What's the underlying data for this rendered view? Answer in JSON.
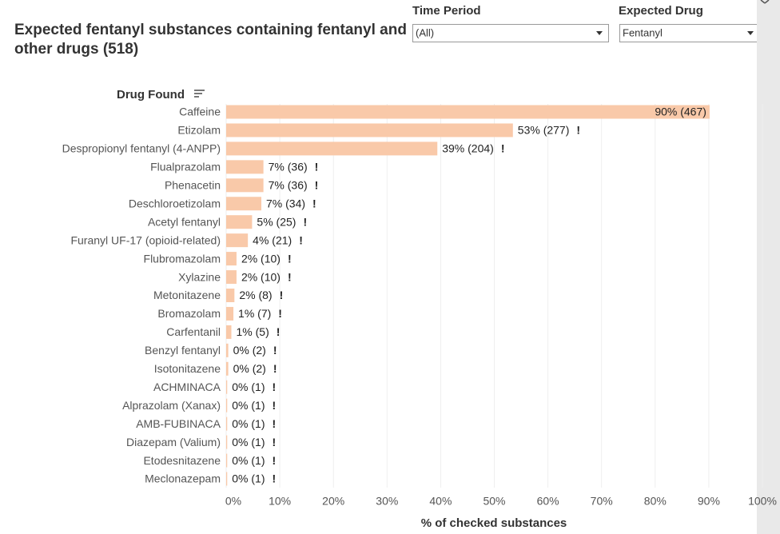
{
  "filters": [
    {
      "label": "Time Period",
      "value": "(All)"
    },
    {
      "label": "Expected Drug",
      "value": "Fentanyl"
    }
  ],
  "chart_data": {
    "type": "bar",
    "orientation": "horizontal",
    "title": "Expected fentanyl substances containing fentanyl and other drugs (518)",
    "y_label": "Drug Found",
    "x_label": "% of checked substances",
    "categories": [
      "Caffeine",
      "Etizolam",
      "Despropionyl fentanyl (4-ANPP)",
      "Flualprazolam",
      "Phenacetin",
      "Deschloroetizolam",
      "Acetyl fentanyl",
      "Furanyl UF-17 (opioid-related)",
      "Flubromazolam",
      "Xylazine",
      "Metonitazene",
      "Bromazolam",
      "Carfentanil",
      "Benzyl fentanyl",
      "Isotonitazene",
      "ACHMINACA",
      "Alprazolam (Xanax)",
      "AMB-FUBINACA",
      "Diazepam (Valium)",
      "Etodesnitazene",
      "Meclonazepam"
    ],
    "values": [
      90.15,
      53.47,
      39.38,
      6.95,
      6.95,
      6.56,
      4.83,
      4.05,
      1.93,
      1.93,
      1.54,
      1.35,
      0.97,
      0.39,
      0.39,
      0.19,
      0.19,
      0.19,
      0.19,
      0.19,
      0.19
    ],
    "value_labels": [
      "90% (467)",
      "53% (277)",
      "39% (204)",
      "7% (36)",
      "7% (36)",
      "7% (34)",
      "5% (25)",
      "4% (21)",
      "2% (10)",
      "2% (10)",
      "2% (8)",
      "1% (7)",
      "1% (5)",
      "0% (2)",
      "0% (2)",
      "0% (1)",
      "0% (1)",
      "0% (1)",
      "0% (1)",
      "0% (1)",
      "0% (1)"
    ],
    "flag_label": "!",
    "flags": [
      false,
      true,
      true,
      true,
      true,
      true,
      true,
      true,
      true,
      true,
      true,
      true,
      true,
      true,
      true,
      true,
      true,
      true,
      true,
      true,
      true
    ],
    "color": "#f9c9a9",
    "grid": true,
    "xlim": [
      0,
      100
    ],
    "xticks": [
      {
        "value": 0,
        "label": "0%"
      },
      {
        "value": 10,
        "label": "10%"
      },
      {
        "value": 20,
        "label": "20%"
      },
      {
        "value": 30,
        "label": "30%"
      },
      {
        "value": 40,
        "label": "40%"
      },
      {
        "value": 50,
        "label": "50%"
      },
      {
        "value": 60,
        "label": "60%"
      },
      {
        "value": 70,
        "label": "70%"
      },
      {
        "value": 80,
        "label": "80%"
      },
      {
        "value": 90,
        "label": "90%"
      },
      {
        "value": 100,
        "label": "100%"
      }
    ]
  }
}
